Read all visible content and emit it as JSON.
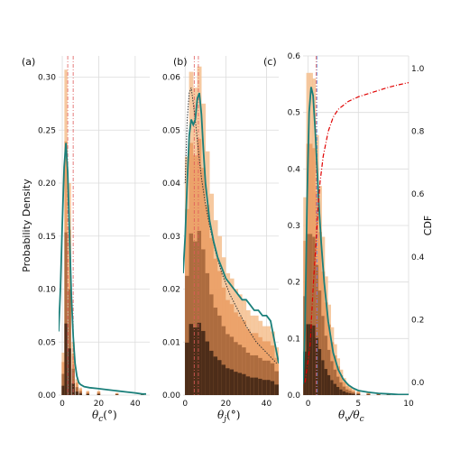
{
  "colors": {
    "kde": "#1a7f7a",
    "hist_light": "#f4c08f",
    "hist_mid": "#e8955a",
    "hist_dark": "#7a3f1c",
    "hist_darkest": "#1a0d05",
    "grid": "#dcdcdc",
    "vline_red": "#e05a5a",
    "vline_blue": "#6a8fd8",
    "cdf": "#e00000",
    "dotted": "#333333"
  },
  "ylabel_left": "Probability Density",
  "ylabel_right": "CDF",
  "chart_data": [
    {
      "type": "area",
      "label": "(a)",
      "xlabel": "θ_c(°)",
      "xlabel_main": "θ",
      "xlabel_sub": "c",
      "xlabel_tail": "(°)",
      "xlim": [
        -2,
        48
      ],
      "ylim": [
        0,
        0.32
      ],
      "xticks": [
        0,
        20,
        40
      ],
      "yticks": [
        0.0,
        0.05,
        0.1,
        0.15,
        0.2,
        0.25,
        0.3
      ],
      "yticklabels": [
        "0.00",
        "0.05",
        "0.10",
        "0.15",
        "0.20",
        "0.25",
        "0.30"
      ],
      "hist": {
        "x": [
          0.5,
          2,
          4,
          6,
          8,
          10,
          14,
          20,
          30,
          44
        ],
        "values": [
          0.04,
          0.307,
          0.2,
          0.05,
          0.015,
          0.007,
          0.004,
          0.004,
          0.002,
          0.001
        ]
      },
      "kde": {
        "x": [
          -2,
          -1,
          0,
          1,
          2,
          3,
          4,
          5,
          6,
          7,
          8,
          9,
          10,
          12,
          15,
          20,
          25,
          30,
          35,
          40,
          44,
          46
        ],
        "y": [
          0.06,
          0.1,
          0.16,
          0.215,
          0.238,
          0.21,
          0.15,
          0.095,
          0.055,
          0.03,
          0.018,
          0.012,
          0.01,
          0.008,
          0.007,
          0.006,
          0.005,
          0.004,
          0.003,
          0.002,
          0.001,
          0.001
        ]
      },
      "vlines": [
        {
          "x": 3.0,
          "color": "red"
        },
        {
          "x": 6.0,
          "color": "red"
        }
      ]
    },
    {
      "type": "area",
      "label": "(b)",
      "xlabel": "θ_j(°)",
      "xlabel_main": "θ",
      "xlabel_sub": "j",
      "xlabel_tail": "(°)",
      "xlim": [
        -1,
        46
      ],
      "ylim": [
        0,
        0.064
      ],
      "xticks": [
        0,
        20,
        40
      ],
      "yticks": [
        0.0,
        0.01,
        0.02,
        0.03,
        0.04,
        0.05,
        0.06
      ],
      "yticklabels": [
        "0.00",
        "0.01",
        "0.02",
        "0.03",
        "0.04",
        "0.05",
        "0.06"
      ],
      "hist": {
        "x": [
          1,
          3,
          5,
          7,
          9,
          11,
          13,
          15,
          17,
          19,
          21,
          23,
          25,
          27,
          29,
          31,
          33,
          35,
          37,
          39,
          41,
          43,
          45
        ],
        "values": [
          0.045,
          0.061,
          0.058,
          0.062,
          0.055,
          0.046,
          0.038,
          0.033,
          0.03,
          0.026,
          0.023,
          0.022,
          0.02,
          0.019,
          0.018,
          0.016,
          0.015,
          0.015,
          0.014,
          0.013,
          0.013,
          0.012,
          0.009
        ]
      },
      "kde": {
        "x": [
          -1,
          0,
          1,
          2,
          3,
          4,
          5,
          6,
          7,
          8,
          9,
          10,
          12,
          14,
          16,
          18,
          20,
          22,
          24,
          26,
          28,
          30,
          32,
          34,
          36,
          38,
          40,
          42,
          44,
          46
        ],
        "y": [
          0.023,
          0.03,
          0.04,
          0.049,
          0.052,
          0.051,
          0.052,
          0.056,
          0.057,
          0.053,
          0.046,
          0.04,
          0.033,
          0.029,
          0.026,
          0.024,
          0.022,
          0.021,
          0.02,
          0.019,
          0.018,
          0.018,
          0.017,
          0.016,
          0.016,
          0.015,
          0.015,
          0.014,
          0.01,
          0.006
        ]
      },
      "dotted": {
        "x": [
          0,
          1,
          2,
          3,
          4,
          5,
          6,
          8,
          10,
          12,
          15,
          18,
          22,
          26,
          30,
          35,
          40,
          45
        ],
        "y": [
          0.04,
          0.052,
          0.057,
          0.058,
          0.055,
          0.052,
          0.048,
          0.041,
          0.036,
          0.032,
          0.027,
          0.023,
          0.019,
          0.016,
          0.013,
          0.01,
          0.008,
          0.006
        ]
      },
      "vlines": [
        {
          "x": 4.5,
          "color": "red"
        },
        {
          "x": 6.5,
          "color": "red"
        }
      ]
    },
    {
      "type": "area",
      "label": "(c)",
      "xlabel": "θ_v/θ_c",
      "xlabel_main": "θ",
      "xlabel_sub": "v",
      "xlabel_tail": "/θ",
      "xlabel_sub2": "c",
      "xlim": [
        -0.5,
        10
      ],
      "ylim": [
        0,
        0.6
      ],
      "xticks": [
        0,
        5,
        10
      ],
      "yticks": [
        0.0,
        0.1,
        0.2,
        0.3,
        0.4,
        0.5,
        0.6
      ],
      "yticklabels": [
        "0.0",
        "0.1",
        "0.2",
        "0.3",
        "0.4",
        "0.5",
        "0.6"
      ],
      "y2lim": [
        -0.04,
        1.04
      ],
      "y2ticks": [
        0.0,
        0.2,
        0.4,
        0.6,
        0.8,
        1.0
      ],
      "y2ticklabels": [
        "0.0",
        "0.2",
        "0.4",
        "0.6",
        "0.8",
        "1.0"
      ],
      "hist": {
        "x": [
          -0.3,
          0.0,
          0.3,
          0.6,
          0.9,
          1.2,
          1.5,
          1.8,
          2.1,
          2.4,
          2.7,
          3.0,
          3.3,
          3.6,
          3.9,
          4.2,
          4.5,
          5.0,
          6.0,
          7.0,
          8.0,
          9.0
        ],
        "values": [
          0.35,
          0.57,
          0.57,
          0.56,
          0.46,
          0.37,
          0.28,
          0.21,
          0.16,
          0.12,
          0.09,
          0.065,
          0.045,
          0.03,
          0.02,
          0.015,
          0.01,
          0.007,
          0.004,
          0.003,
          0.002,
          0.001
        ]
      },
      "kde": {
        "x": [
          -0.5,
          -0.3,
          -0.1,
          0.1,
          0.3,
          0.5,
          0.7,
          0.9,
          1.1,
          1.3,
          1.6,
          2.0,
          2.5,
          3.0,
          3.5,
          4.0,
          4.5,
          5.0,
          6.0,
          7.0,
          8.0,
          9.0,
          10.0
        ],
        "y": [
          0.02,
          0.12,
          0.35,
          0.5,
          0.545,
          0.53,
          0.47,
          0.4,
          0.33,
          0.27,
          0.2,
          0.13,
          0.075,
          0.045,
          0.028,
          0.018,
          0.012,
          0.008,
          0.005,
          0.003,
          0.002,
          0.001,
          0.001
        ]
      },
      "cdf": {
        "x": [
          -0.3,
          0.2,
          0.5,
          0.8,
          1.0,
          1.2,
          1.5,
          2.0,
          2.5,
          3.0,
          4.0,
          5.0,
          6.0,
          7.0,
          8.0,
          9.0,
          10.0
        ],
        "y": [
          0.0,
          0.12,
          0.3,
          0.45,
          0.56,
          0.64,
          0.72,
          0.8,
          0.845,
          0.87,
          0.895,
          0.91,
          0.92,
          0.93,
          0.94,
          0.948,
          0.955
        ]
      },
      "vlines": [
        {
          "x": 0.8,
          "color": "red"
        },
        {
          "x": 0.9,
          "color": "blue"
        }
      ]
    }
  ]
}
